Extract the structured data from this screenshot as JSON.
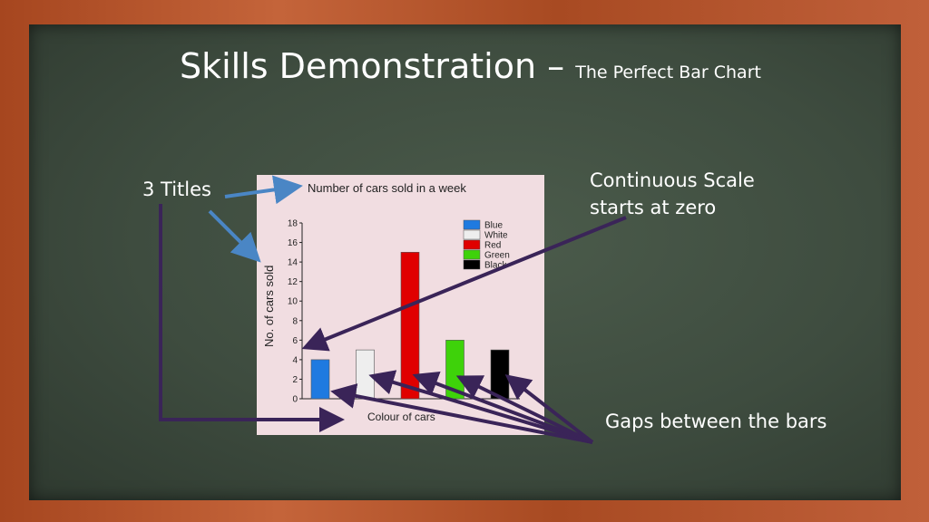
{
  "slide": {
    "title_main": "Skills Demonstration –",
    "title_sub": "The Perfect Bar Chart"
  },
  "annotations": {
    "titles": "3 Titles",
    "scale_line1": "Continuous Scale",
    "scale_line2": "starts at zero",
    "gaps": "Gaps between the bars"
  },
  "colors": {
    "arrow_blue": "#4a86c5",
    "arrow_purple": "#3a2458",
    "board": "#3e4c3f",
    "panel": "#f1dde1"
  },
  "chart_data": {
    "type": "bar",
    "title": "Number of cars sold in a week",
    "xlabel": "Colour of cars",
    "ylabel": "No. of cars sold",
    "categories": [
      "Blue",
      "White",
      "Red",
      "Green",
      "Black"
    ],
    "values": [
      4,
      5,
      15,
      6,
      5
    ],
    "colors": [
      "#1f7ae0",
      "#eeeeee",
      "#e00000",
      "#3ed20a",
      "#000000"
    ],
    "ylim": [
      0,
      18
    ],
    "yticks": [
      0,
      2,
      4,
      6,
      8,
      10,
      12,
      14,
      16,
      18
    ],
    "legend": [
      "Blue",
      "White",
      "Red",
      "Green",
      "Black"
    ],
    "legend_position": "top-right",
    "grid": false
  }
}
